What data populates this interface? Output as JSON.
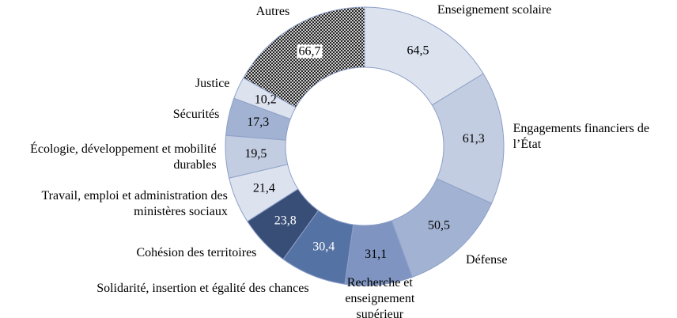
{
  "chart_data": {
    "type": "donut",
    "categories": [
      "Enseignement scolaire",
      "Engagements financiers de l’État",
      "Défense",
      "Recherche et enseignement supérieur",
      "Solidarité, insertion et égalité des chances",
      "Cohésion des territoires",
      "Travail, emploi et administration des ministères sociaux",
      "Écologie, développement et mobilité durables",
      "Sécurités",
      "Justice",
      "Autres"
    ],
    "values": [
      64.5,
      61.3,
      50.5,
      31.1,
      30.4,
      23.8,
      21.4,
      19.5,
      17.3,
      10.2,
      66.7
    ],
    "value_labels": [
      "64,5",
      "61,3",
      "50,5",
      "31,1",
      "30,4",
      "23,8",
      "21,4",
      "19,5",
      "17,3",
      "10,2",
      "66,7"
    ],
    "colors": [
      "#dce3ef",
      "#c3cde1",
      "#a2b2d2",
      "#7f94c0",
      "#5572a4",
      "#384e77",
      "#dce3ef",
      "#c3cde1",
      "#a2b2d2",
      "#dce3ef",
      "#ffffff"
    ],
    "hatched": [
      "Autres"
    ]
  }
}
